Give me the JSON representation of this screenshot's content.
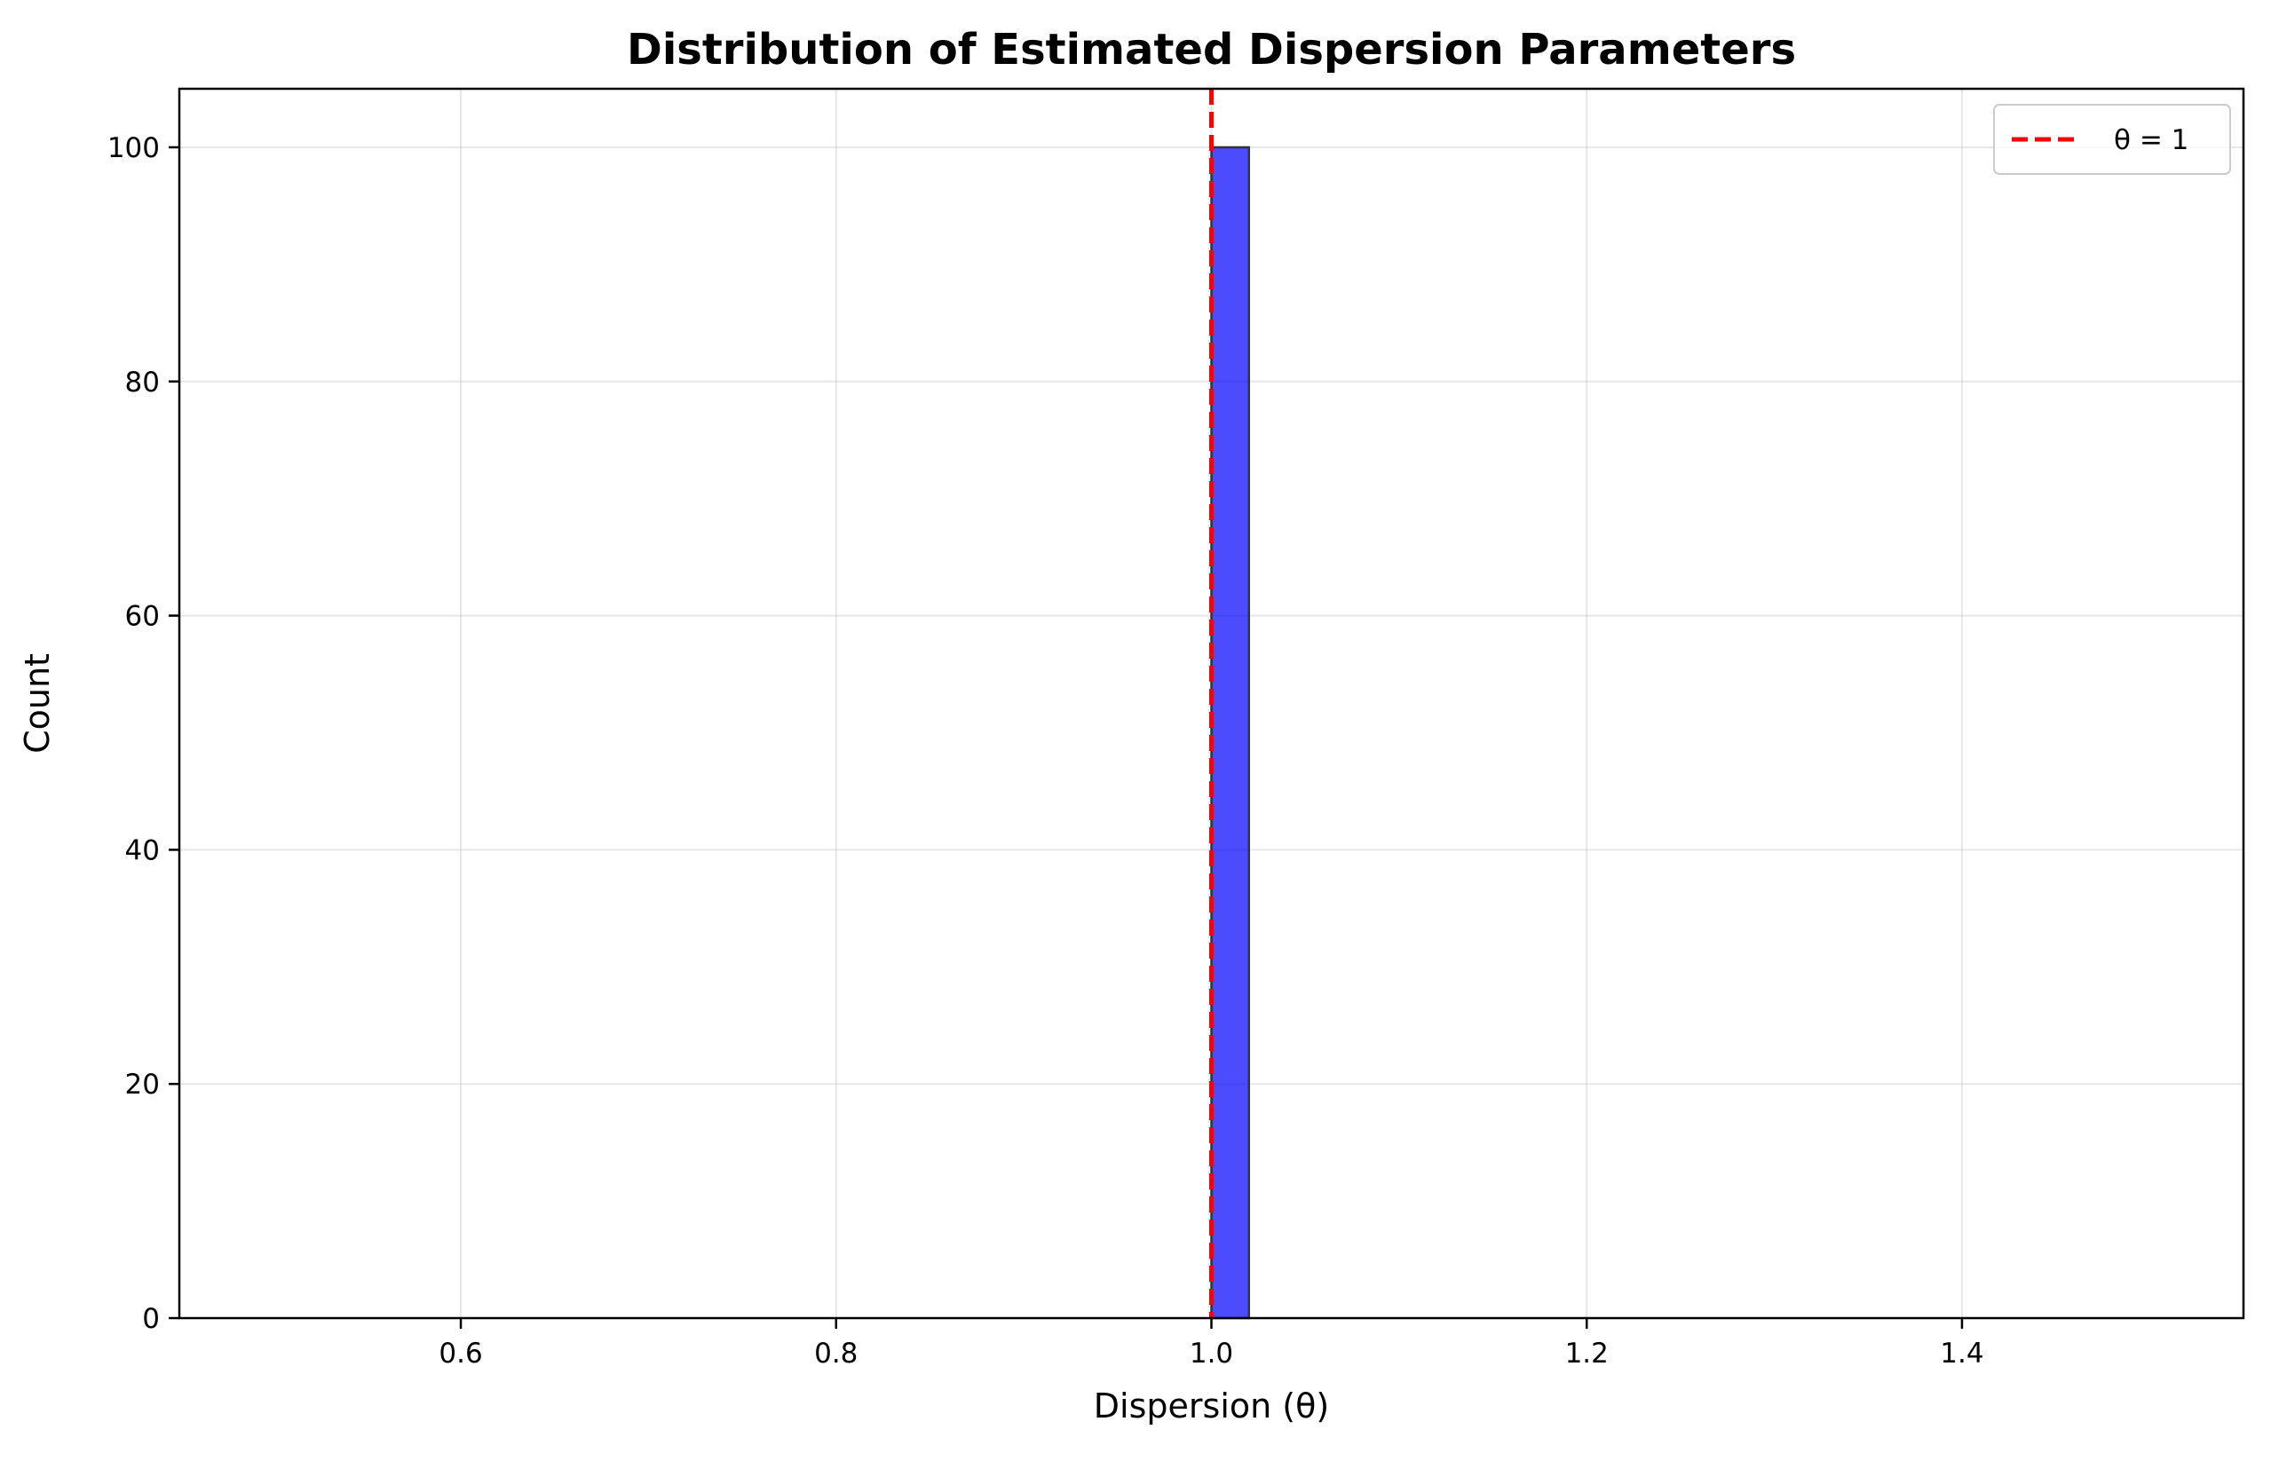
{
  "chart_data": {
    "type": "bar",
    "title": "Distribution of Estimated Dispersion Parameters",
    "xlabel": "Dispersion (θ)",
    "ylabel": "Count",
    "xlim": [
      0.45,
      1.55
    ],
    "ylim": [
      0,
      105
    ],
    "x_ticks": [
      0.6,
      0.8,
      1.0,
      1.2,
      1.4
    ],
    "x_tick_labels": [
      "0.6",
      "0.8",
      "1.0",
      "1.2",
      "1.4"
    ],
    "y_ticks": [
      0,
      20,
      40,
      60,
      80,
      100
    ],
    "y_tick_labels": [
      "0",
      "20",
      "40",
      "60",
      "80",
      "100"
    ],
    "grid": true,
    "bins": {
      "start": 0.5,
      "end": 1.5,
      "width": 0.02,
      "counts": [
        0,
        0,
        0,
        0,
        0,
        0,
        0,
        0,
        0,
        0,
        0,
        0,
        0,
        0,
        0,
        0,
        0,
        0,
        0,
        0,
        0,
        0,
        0,
        0,
        0,
        100,
        0,
        0,
        0,
        0,
        0,
        0,
        0,
        0,
        0,
        0,
        0,
        0,
        0,
        0,
        0,
        0,
        0,
        0,
        0,
        0,
        0,
        0,
        0,
        0
      ]
    },
    "bar_color": "#0000ff",
    "bar_edge_color": "#333333",
    "reference_line": {
      "x": 1.0,
      "label": "θ = 1",
      "color": "#ff0000",
      "style": "dashed"
    },
    "legend": {
      "placement": "top-right",
      "entries": [
        {
          "label": "θ = 1",
          "color": "#ff0000",
          "style": "dashed"
        }
      ]
    }
  }
}
